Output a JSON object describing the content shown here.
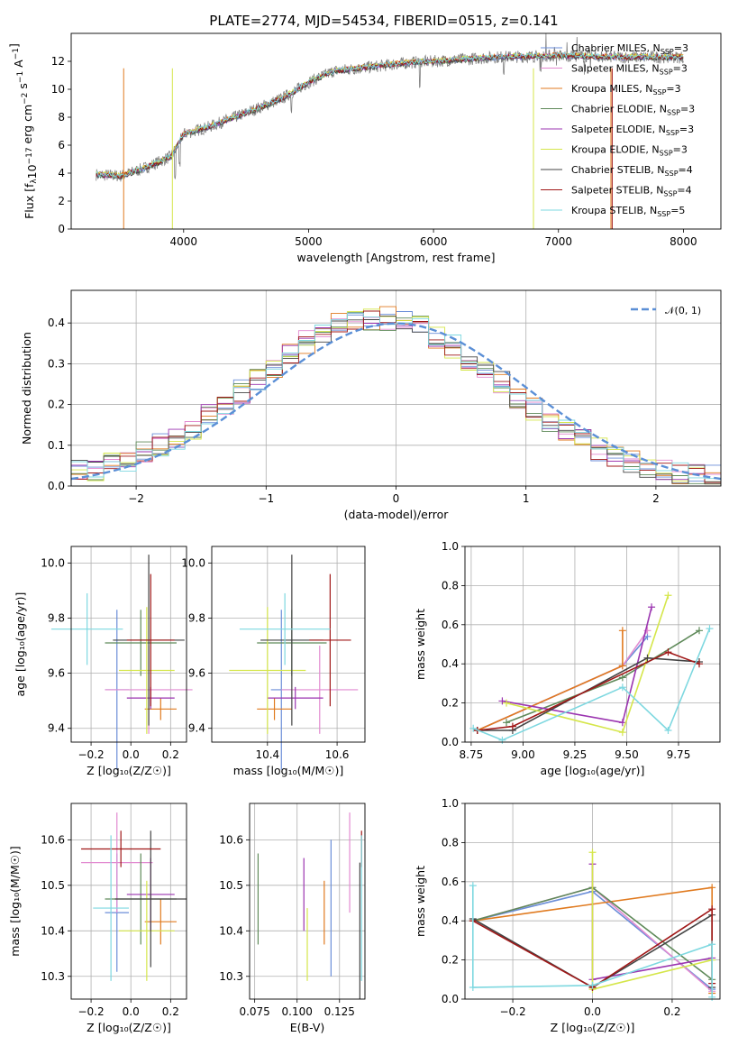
{
  "figure": {
    "title": "PLATE=2774, MJD=54534, FIBERID=0515, z=0.141"
  },
  "series_colors": {
    "chabrier_miles": "#6b8ed8",
    "salpeter_miles": "#e28ad0",
    "kroupa_miles": "#e07a1f",
    "chabrier_elodie": "#5f8a5a",
    "salpeter_elodie": "#9b35b0",
    "kroupa_elodie": "#d5e64a",
    "chabrier_stelib": "#444444",
    "salpeter_stelib": "#a01818",
    "kroupa_stelib": "#7ed8e0",
    "data": "#808080",
    "normal": "#5b8fd6"
  },
  "chart_data": [
    {
      "id": "spectrum",
      "type": "line",
      "xlabel": "wavelength [Angstrom, rest frame]",
      "ylabel": "Flux [f_λ10^-17 erg cm^-2 s^-1 A^-1]",
      "xlim": [
        3100,
        8300
      ],
      "ylim": [
        0,
        14
      ],
      "xticks": [
        4000,
        5000,
        6000,
        7000,
        8000
      ],
      "yticks": [
        0,
        2,
        4,
        6,
        8,
        10,
        12
      ],
      "legend": "right",
      "legend_entries": [
        {
          "key": "chabrier_miles",
          "label": "Chabrier MILES, N",
          "sub": "SSP",
          "suffix": "=3"
        },
        {
          "key": "salpeter_miles",
          "label": "Salpeter MILES, N",
          "sub": "SSP",
          "suffix": "=3"
        },
        {
          "key": "kroupa_miles",
          "label": "Kroupa MILES, N",
          "sub": "SSP",
          "suffix": "=3"
        },
        {
          "key": "chabrier_elodie",
          "label": "Chabrier ELODIE, N",
          "sub": "SSP",
          "suffix": "=3"
        },
        {
          "key": "salpeter_elodie",
          "label": "Salpeter ELODIE, N",
          "sub": "SSP",
          "suffix": "=3"
        },
        {
          "key": "kroupa_elodie",
          "label": "Kroupa ELODIE, N",
          "sub": "SSP",
          "suffix": "=3"
        },
        {
          "key": "chabrier_stelib",
          "label": "Chabrier STELIB, N",
          "sub": "SSP",
          "suffix": "=4"
        },
        {
          "key": "salpeter_stelib",
          "label": "Salpeter STELIB, N",
          "sub": "SSP",
          "suffix": "=4"
        },
        {
          "key": "kroupa_stelib",
          "label": "Kroupa STELIB, N",
          "sub": "SSP",
          "suffix": "=5"
        }
      ],
      "continuum_wavelength": [
        3300,
        3500,
        3700,
        3900,
        4000,
        4200,
        4500,
        4800,
        5000,
        5200,
        5500,
        5800,
        6000,
        6500,
        7000,
        7500,
        8000
      ],
      "continuum_flux": [
        3.9,
        3.8,
        4.4,
        5.2,
        6.8,
        7.3,
        8.3,
        9.4,
        10.5,
        11.3,
        11.6,
        11.9,
        12.0,
        12.3,
        12.4,
        12.3,
        12.3
      ]
    },
    {
      "id": "residuals",
      "type": "line",
      "xlabel": "(data-model)/error",
      "ylabel": "Normed distribution",
      "xlim": [
        -2.5,
        2.5
      ],
      "ylim": [
        0,
        0.48
      ],
      "xticks": [
        -2,
        -1,
        0,
        1,
        2
      ],
      "yticks": [
        0.0,
        0.1,
        0.2,
        0.3,
        0.4
      ],
      "legend": "top-right",
      "legend_label": "𝒩(0, 1)"
    },
    {
      "id": "age_vs_Z",
      "type": "scatter",
      "xlabel": "Z [log₁₀(Z/Z☉)]",
      "ylabel": "age  [log₁₀(age/yr)]",
      "xlim": [
        -0.3,
        0.28
      ],
      "ylim": [
        9.35,
        10.06
      ],
      "xticks": [
        -0.2,
        0.0,
        0.2
      ],
      "yticks": [
        9.4,
        9.6,
        9.8,
        10.0
      ],
      "points": [
        {
          "key": "chabrier_miles",
          "x": -0.07,
          "y": 9.54,
          "xerr": 0.06,
          "yerr": 0.29
        },
        {
          "key": "salpeter_miles",
          "x": 0.09,
          "y": 9.54,
          "xerr": 0.22,
          "yerr": 0.16
        },
        {
          "key": "kroupa_miles",
          "x": 0.15,
          "y": 9.47,
          "xerr": 0.08,
          "yerr": 0.04
        },
        {
          "key": "chabrier_elodie",
          "x": 0.05,
          "y": 9.71,
          "xerr": 0.18,
          "yerr": 0.12
        },
        {
          "key": "salpeter_elodie",
          "x": 0.1,
          "y": 9.51,
          "xerr": 0.12,
          "yerr": 0.04
        },
        {
          "key": "kroupa_elodie",
          "x": 0.08,
          "y": 9.61,
          "xerr": 0.14,
          "yerr": 0.23
        },
        {
          "key": "chabrier_stelib",
          "x": 0.09,
          "y": 9.72,
          "xerr": 0.18,
          "yerr": 0.31
        },
        {
          "key": "salpeter_stelib",
          "x": 0.1,
          "y": 9.72,
          "xerr": 0.12,
          "yerr": 0.24
        },
        {
          "key": "kroupa_stelib",
          "x": -0.22,
          "y": 9.76,
          "xerr": 0.18,
          "yerr": 0.13
        }
      ]
    },
    {
      "id": "age_vs_mass",
      "type": "scatter",
      "xlabel": "mass [log₁₀(M/M☉)]",
      "ylabel": "",
      "xlim": [
        10.24,
        10.68
      ],
      "ylim": [
        9.35,
        10.06
      ],
      "xticks": [
        10.4,
        10.6
      ],
      "yticks": [
        9.4,
        9.6,
        9.8,
        10.0
      ],
      "points": [
        {
          "key": "chabrier_miles",
          "x": 10.44,
          "y": 9.54,
          "xerr": 0.03,
          "yerr": 0.29
        },
        {
          "key": "salpeter_miles",
          "x": 10.55,
          "y": 9.54,
          "xerr": 0.11,
          "yerr": 0.16
        },
        {
          "key": "kroupa_miles",
          "x": 10.42,
          "y": 9.47,
          "xerr": 0.05,
          "yerr": 0.04
        },
        {
          "key": "chabrier_elodie",
          "x": 10.47,
          "y": 9.71,
          "xerr": 0.1,
          "yerr": 0.12
        },
        {
          "key": "salpeter_elodie",
          "x": 10.48,
          "y": 9.51,
          "xerr": 0.08,
          "yerr": 0.04
        },
        {
          "key": "kroupa_elodie",
          "x": 10.4,
          "y": 9.61,
          "xerr": 0.11,
          "yerr": 0.23
        },
        {
          "key": "chabrier_stelib",
          "x": 10.47,
          "y": 9.72,
          "xerr": 0.09,
          "yerr": 0.31
        },
        {
          "key": "salpeter_stelib",
          "x": 10.58,
          "y": 9.72,
          "xerr": 0.06,
          "yerr": 0.24
        },
        {
          "key": "kroupa_stelib",
          "x": 10.45,
          "y": 9.76,
          "xerr": 0.13,
          "yerr": 0.13
        }
      ]
    },
    {
      "id": "mass_weight_vs_age",
      "type": "line",
      "xlabel": "age  [log₁₀(age/yr)]",
      "ylabel": "mass weight",
      "xlim": [
        8.72,
        9.95
      ],
      "ylim": [
        0,
        1.0
      ],
      "xticks": [
        8.75,
        9.0,
        9.25,
        9.5,
        9.75
      ],
      "yticks": [
        0.0,
        0.2,
        0.4,
        0.6,
        0.8,
        1.0
      ],
      "series": [
        {
          "key": "chabrier_miles",
          "x": [
            8.78,
            9.48,
            9.6
          ],
          "y": [
            0.06,
            0.39,
            0.54
          ]
        },
        {
          "key": "salpeter_miles",
          "x": [
            8.78,
            9.48,
            9.6
          ],
          "y": [
            0.06,
            0.39,
            0.57
          ]
        },
        {
          "key": "kroupa_miles",
          "x": [
            8.78,
            9.48,
            9.48
          ],
          "y": [
            0.06,
            0.39,
            0.57
          ]
        },
        {
          "key": "chabrier_elodie",
          "x": [
            8.92,
            9.48,
            9.85
          ],
          "y": [
            0.1,
            0.33,
            0.57
          ]
        },
        {
          "key": "salpeter_elodie",
          "x": [
            8.9,
            9.48,
            9.62
          ],
          "y": [
            0.21,
            0.1,
            0.69
          ]
        },
        {
          "key": "kroupa_elodie",
          "x": [
            8.92,
            9.48,
            9.7
          ],
          "y": [
            0.2,
            0.05,
            0.75
          ]
        },
        {
          "key": "chabrier_stelib",
          "x": [
            8.78,
            8.95,
            9.6,
            9.85
          ],
          "y": [
            0.06,
            0.06,
            0.43,
            0.41
          ]
        },
        {
          "key": "salpeter_stelib",
          "x": [
            8.78,
            8.95,
            9.7,
            9.85
          ],
          "y": [
            0.06,
            0.08,
            0.46,
            0.4
          ]
        },
        {
          "key": "kroupa_stelib",
          "x": [
            8.76,
            8.9,
            9.48,
            9.7,
            9.9
          ],
          "y": [
            0.07,
            0.01,
            0.28,
            0.06,
            0.58
          ]
        }
      ]
    },
    {
      "id": "mass_vs_Z",
      "type": "scatter",
      "xlabel": "Z [log₁₀(Z/Z☉)]",
      "ylabel": "mass [log₁₀(M/M☉)]",
      "xlim": [
        -0.3,
        0.28
      ],
      "ylim": [
        10.25,
        10.68
      ],
      "xticks": [
        -0.2,
        0.0,
        0.2
      ],
      "yticks": [
        10.3,
        10.4,
        10.5,
        10.6
      ],
      "points": [
        {
          "key": "chabrier_miles",
          "x": -0.07,
          "y": 10.44,
          "xerr": 0.06,
          "yerr": 0.13
        },
        {
          "key": "salpeter_miles",
          "x": -0.07,
          "y": 10.55,
          "xerr": 0.18,
          "yerr": 0.11
        },
        {
          "key": "kroupa_miles",
          "x": 0.15,
          "y": 10.42,
          "xerr": 0.08,
          "yerr": 0.05
        },
        {
          "key": "chabrier_elodie",
          "x": 0.05,
          "y": 10.47,
          "xerr": 0.18,
          "yerr": 0.1
        },
        {
          "key": "salpeter_elodie",
          "x": 0.1,
          "y": 10.48,
          "xerr": 0.12,
          "yerr": 0.08
        },
        {
          "key": "kroupa_elodie",
          "x": 0.08,
          "y": 10.4,
          "xerr": 0.14,
          "yerr": 0.11
        },
        {
          "key": "chabrier_stelib",
          "x": 0.1,
          "y": 10.47,
          "xerr": 0.18,
          "yerr": 0.15
        },
        {
          "key": "salpeter_stelib",
          "x": -0.05,
          "y": 10.58,
          "xerr": 0.2,
          "yerr": 0.04
        },
        {
          "key": "kroupa_stelib",
          "x": -0.1,
          "y": 10.45,
          "xerr": 0.09,
          "yerr": 0.16
        }
      ]
    },
    {
      "id": "mass_vs_ebv",
      "type": "scatter",
      "xlabel": "E(B-V)",
      "ylabel": "",
      "xlim": [
        0.072,
        0.14
      ],
      "ylim": [
        10.25,
        10.68
      ],
      "xticks": [
        0.075,
        0.1,
        0.125
      ],
      "yticks": [
        10.3,
        10.4,
        10.5,
        10.6
      ],
      "points": [
        {
          "key": "chabrier_elodie",
          "x": 0.077,
          "y": 10.47,
          "xerr": 0,
          "yerr": 0.1
        },
        {
          "key": "salpeter_elodie",
          "x": 0.104,
          "y": 10.48,
          "xerr": 0,
          "yerr": 0.08
        },
        {
          "key": "kroupa_elodie",
          "x": 0.106,
          "y": 10.37,
          "xerr": 0,
          "yerr": 0.08
        },
        {
          "key": "kroupa_miles",
          "x": 0.116,
          "y": 10.44,
          "xerr": 0,
          "yerr": 0.07
        },
        {
          "key": "chabrier_miles",
          "x": 0.12,
          "y": 10.45,
          "xerr": 0,
          "yerr": 0.15
        },
        {
          "key": "salpeter_miles",
          "x": 0.131,
          "y": 10.55,
          "xerr": 0,
          "yerr": 0.11
        },
        {
          "key": "chabrier_stelib",
          "x": 0.137,
          "y": 10.4,
          "xerr": 0,
          "yerr": 0.15
        },
        {
          "key": "salpeter_stelib",
          "x": 0.138,
          "y": 10.58,
          "xerr": 0,
          "yerr": 0.04
        },
        {
          "key": "kroupa_stelib",
          "x": 0.138,
          "y": 10.45,
          "xerr": 0,
          "yerr": 0.16
        }
      ]
    },
    {
      "id": "mass_weight_vs_Z",
      "type": "line",
      "xlabel": "Z [log₁₀(Z/Z☉)]",
      "ylabel": "mass weight",
      "xlim": [
        -0.32,
        0.32
      ],
      "ylim": [
        0,
        1.0
      ],
      "xticks": [
        -0.2,
        0.0,
        0.2
      ],
      "yticks": [
        0.0,
        0.2,
        0.4,
        0.6,
        0.8,
        1.0
      ],
      "series": [
        {
          "key": "chabrier_miles",
          "x": [
            -0.3,
            0.0,
            0.3
          ],
          "y": [
            0.4,
            0.55,
            0.05
          ]
        },
        {
          "key": "salpeter_miles",
          "x": [
            -0.3,
            0.0,
            0.3
          ],
          "y": [
            0.4,
            0.57,
            0.04
          ]
        },
        {
          "key": "kroupa_miles",
          "x": [
            -0.3,
            0.3,
            0.3
          ],
          "y": [
            0.4,
            0.57,
            0.03
          ]
        },
        {
          "key": "chabrier_elodie",
          "x": [
            -0.3,
            0.0,
            0.3
          ],
          "y": [
            0.4,
            0.57,
            0.1
          ]
        },
        {
          "key": "salpeter_elodie",
          "x": [
            0.0,
            0.0,
            0.3
          ],
          "y": [
            0.69,
            0.1,
            0.21
          ]
        },
        {
          "key": "kroupa_elodie",
          "x": [
            0.0,
            0.0,
            0.3
          ],
          "y": [
            0.75,
            0.05,
            0.2
          ]
        },
        {
          "key": "chabrier_stelib",
          "x": [
            -0.3,
            0.0,
            0.3,
            0.3
          ],
          "y": [
            0.41,
            0.06,
            0.43,
            0.06
          ]
        },
        {
          "key": "salpeter_stelib",
          "x": [
            -0.3,
            0.0,
            0.3,
            0.3
          ],
          "y": [
            0.4,
            0.06,
            0.46,
            0.08
          ]
        },
        {
          "key": "kroupa_stelib",
          "x": [
            -0.3,
            -0.3,
            0.0,
            0.3,
            0.3
          ],
          "y": [
            0.58,
            0.06,
            0.07,
            0.28,
            0.01
          ]
        }
      ]
    }
  ]
}
